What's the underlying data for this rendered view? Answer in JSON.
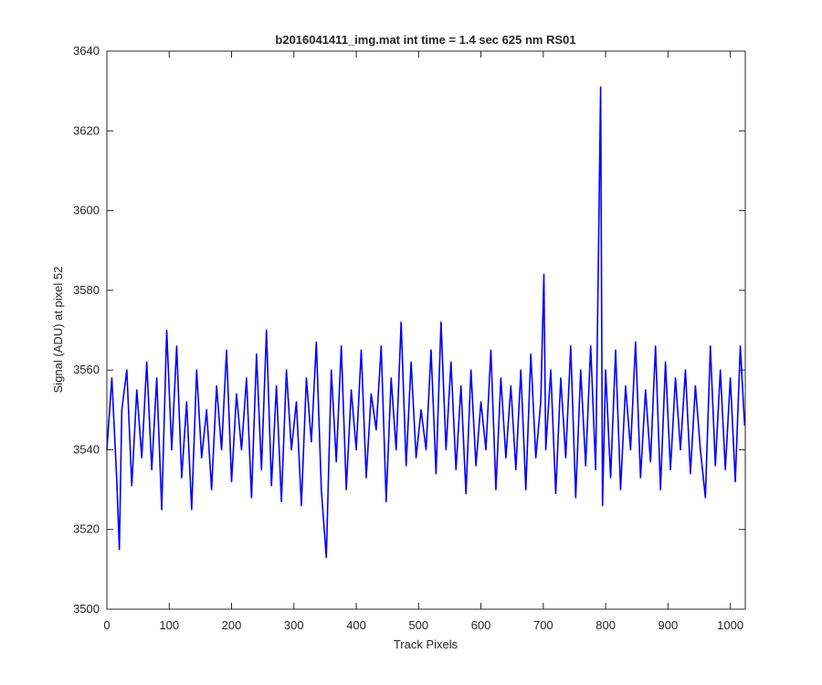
{
  "chart_data": {
    "type": "line",
    "title": "b2016041411_img.mat int time = 1.4 sec  625 nm RS01",
    "xlabel": "Track Pixels",
    "ylabel": "Signal (ADU) at pixel 52",
    "xlim": [
      0,
      1024
    ],
    "ylim": [
      3500,
      3640
    ],
    "xticks": [
      0,
      100,
      200,
      300,
      400,
      500,
      600,
      700,
      800,
      900,
      1000
    ],
    "yticks": [
      3500,
      3520,
      3540,
      3560,
      3580,
      3600,
      3620,
      3640
    ],
    "grid": false,
    "x": [
      0,
      8,
      16,
      20,
      24,
      32,
      40,
      48,
      56,
      64,
      72,
      80,
      88,
      96,
      104,
      112,
      120,
      128,
      136,
      144,
      152,
      160,
      168,
      176,
      184,
      192,
      200,
      208,
      216,
      224,
      232,
      240,
      248,
      256,
      264,
      272,
      280,
      288,
      296,
      304,
      312,
      320,
      328,
      336,
      344,
      352,
      360,
      368,
      376,
      384,
      392,
      400,
      408,
      416,
      424,
      432,
      440,
      448,
      456,
      464,
      472,
      480,
      488,
      496,
      504,
      512,
      520,
      528,
      536,
      544,
      552,
      560,
      568,
      576,
      584,
      592,
      600,
      608,
      616,
      624,
      632,
      640,
      648,
      656,
      664,
      672,
      680,
      688,
      696,
      701,
      704,
      712,
      720,
      728,
      736,
      744,
      752,
      760,
      768,
      776,
      784,
      792,
      795,
      800,
      808,
      816,
      824,
      832,
      840,
      848,
      856,
      864,
      872,
      880,
      888,
      896,
      904,
      912,
      920,
      928,
      936,
      944,
      952,
      960,
      968,
      976,
      984,
      992,
      1000,
      1008,
      1016,
      1023
    ],
    "series": [
      {
        "color": "#0000ff",
        "values": [
          3540,
          3558,
          3532,
          3515,
          3550,
          3560,
          3531,
          3555,
          3538,
          3562,
          3535,
          3558,
          3525,
          3570,
          3540,
          3566,
          3533,
          3552,
          3525,
          3560,
          3538,
          3550,
          3530,
          3556,
          3540,
          3565,
          3532,
          3554,
          3540,
          3558,
          3528,
          3564,
          3535,
          3570,
          3531,
          3556,
          3527,
          3560,
          3540,
          3552,
          3526,
          3558,
          3542,
          3567,
          3530,
          3513,
          3560,
          3537,
          3566,
          3530,
          3555,
          3540,
          3565,
          3533,
          3554,
          3545,
          3566,
          3527,
          3558,
          3540,
          3572,
          3536,
          3562,
          3538,
          3550,
          3540,
          3565,
          3534,
          3572,
          3540,
          3562,
          3535,
          3556,
          3529,
          3560,
          3536,
          3552,
          3540,
          3565,
          3530,
          3558,
          3538,
          3556,
          3535,
          3560,
          3530,
          3564,
          3538,
          3552,
          3584,
          3540,
          3560,
          3529,
          3558,
          3538,
          3566,
          3528,
          3560,
          3536,
          3566,
          3535,
          3631,
          3526,
          3560,
          3533,
          3565,
          3530,
          3556,
          3540,
          3567,
          3533,
          3555,
          3537,
          3566,
          3530,
          3562,
          3535,
          3558,
          3540,
          3560,
          3534,
          3556,
          3540,
          3528,
          3566,
          3536,
          3560,
          3535,
          3558,
          3532,
          3566,
          3546
        ]
      }
    ]
  }
}
